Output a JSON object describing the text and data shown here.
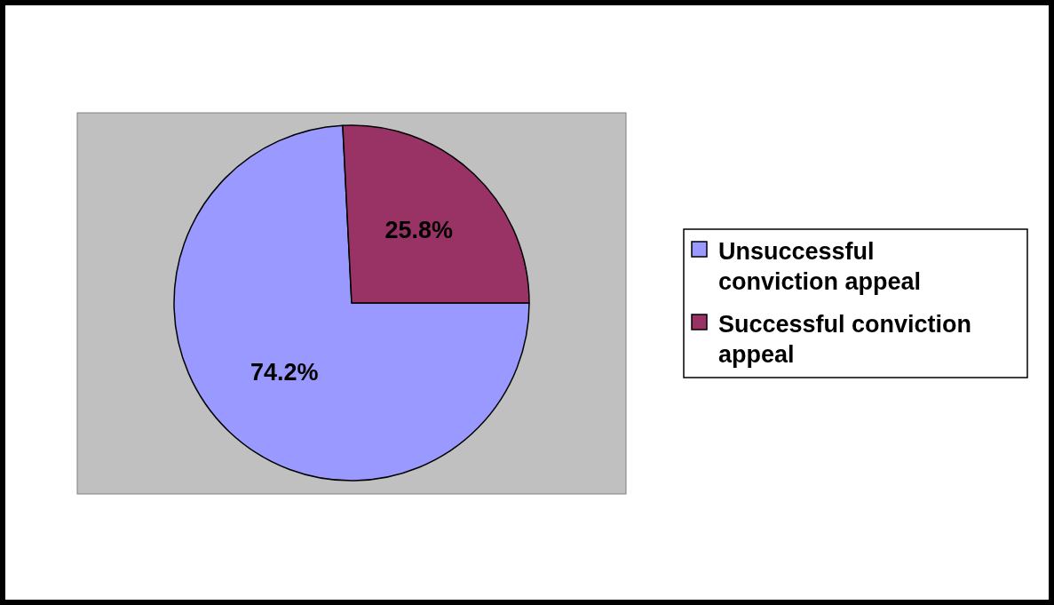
{
  "chart_data": {
    "type": "pie",
    "categories": [
      "Unsuccessful conviction appeal",
      "Successful conviction appeal"
    ],
    "values": [
      74.2,
      25.8
    ],
    "value_labels": [
      "74.2%",
      "25.8%"
    ],
    "colors": [
      "#9999ff",
      "#993366"
    ],
    "legend": "right"
  }
}
